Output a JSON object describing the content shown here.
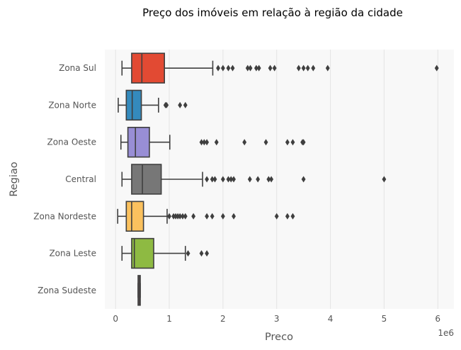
{
  "chart_data": {
    "type": "box",
    "orientation": "horizontal",
    "title": "Preço dos imóveis em relação à região da cidade",
    "xlabel": "Preco",
    "ylabel": "Regiao",
    "x_offset_label": "1e6",
    "xlim": [
      -0.2,
      6.3
    ],
    "x_ticks": [
      0,
      1,
      2,
      3,
      4,
      5,
      6
    ],
    "x_tick_labels": [
      "0",
      "1",
      "2",
      "3",
      "4",
      "5",
      "6"
    ],
    "grid": true,
    "series": [
      {
        "name": "Zona Sul",
        "color": "#E24A33",
        "whisker_low": 0.12,
        "q1": 0.3,
        "median": 0.49,
        "q3": 0.91,
        "whisker_high": 1.81,
        "outliers": [
          1.91,
          2.0,
          2.1,
          2.18,
          2.46,
          2.51,
          2.62,
          2.67,
          2.88,
          2.96,
          3.41,
          3.5,
          3.58,
          3.68,
          3.95,
          5.98
        ]
      },
      {
        "name": "Zona Norte",
        "color": "#348ABD",
        "whisker_low": 0.05,
        "q1": 0.2,
        "median": 0.31,
        "q3": 0.48,
        "whisker_high": 0.8,
        "outliers": [
          0.93,
          0.95,
          1.2,
          1.3
        ]
      },
      {
        "name": "Zona Oeste",
        "color": "#988ED5",
        "whisker_low": 0.1,
        "q1": 0.23,
        "median": 0.37,
        "q3": 0.63,
        "whisker_high": 1.01,
        "outliers": [
          1.6,
          1.65,
          1.7,
          1.88,
          2.4,
          2.8,
          3.2,
          3.3,
          3.48,
          3.5
        ]
      },
      {
        "name": "Central",
        "color": "#777777",
        "whisker_low": 0.12,
        "q1": 0.3,
        "median": 0.5,
        "q3": 0.85,
        "whisker_high": 1.62,
        "outliers": [
          1.7,
          1.8,
          1.85,
          2.0,
          2.1,
          2.15,
          2.2,
          2.5,
          2.65,
          2.85,
          2.9,
          3.5,
          5.0
        ]
      },
      {
        "name": "Zona Nordeste",
        "color": "#FBC15E",
        "whisker_low": 0.04,
        "q1": 0.2,
        "median": 0.3,
        "q3": 0.52,
        "whisker_high": 0.96,
        "outliers": [
          1.0,
          1.08,
          1.12,
          1.16,
          1.2,
          1.25,
          1.3,
          1.45,
          1.7,
          1.8,
          2.0,
          2.2,
          3.0,
          3.2,
          3.3
        ]
      },
      {
        "name": "Zona Leste",
        "color": "#8EBA42",
        "whisker_low": 0.12,
        "q1": 0.3,
        "median": 0.35,
        "q3": 0.71,
        "whisker_high": 1.3,
        "outliers": [
          1.35,
          1.6,
          1.7
        ]
      },
      {
        "name": "Zona Sudeste",
        "color": "#FFB5B8",
        "whisker_low": 0.42,
        "q1": 0.42,
        "median": 0.44,
        "q3": 0.46,
        "whisker_high": 0.46,
        "outliers": []
      }
    ]
  }
}
